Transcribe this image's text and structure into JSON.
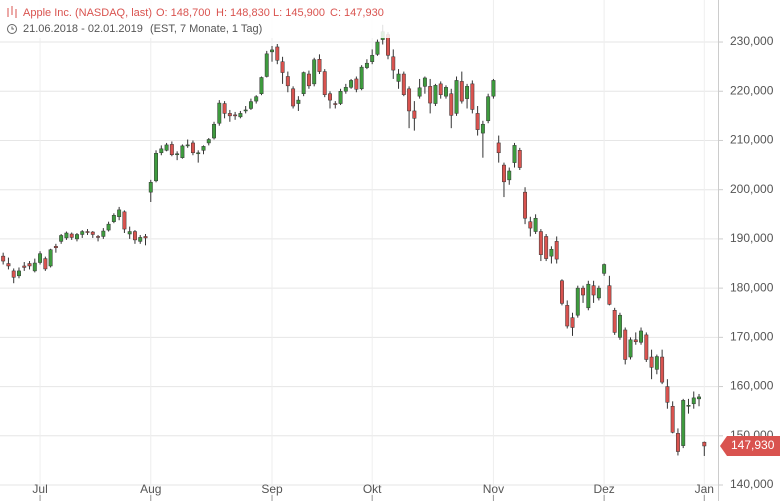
{
  "chart_data": {
    "type": "candlestick",
    "header": {
      "name": "Apple Inc. (NASDAQ, last)",
      "open": "O: 148,700",
      "high": "H: 148,830",
      "low": "L: 145,900",
      "close": "C: 147,930",
      "range": "21.06.2018 - 02.01.2019",
      "info": "(EST, 7 Monate, 1 Tag)"
    },
    "up_color": "#3e9b3e",
    "down_color": "#d9534f",
    "grid": true,
    "ylim": [
      136750,
      238540
    ],
    "xlim": [
      -0.6,
      135.6
    ],
    "yticks": [
      {
        "value": 140000,
        "label": "140,000"
      },
      {
        "value": 150000,
        "label": "150,000"
      },
      {
        "value": 160000,
        "label": "160,000"
      },
      {
        "value": 170000,
        "label": "170,000"
      },
      {
        "value": 180000,
        "label": "180,000"
      },
      {
        "value": 190000,
        "label": "190,000"
      },
      {
        "value": 200000,
        "label": "200,000"
      },
      {
        "value": 210000,
        "label": "210,000"
      },
      {
        "value": 220000,
        "label": "220,000"
      },
      {
        "value": 230000,
        "label": "230,000"
      }
    ],
    "xticks": [
      {
        "value": 7,
        "label": "Jul"
      },
      {
        "value": 28,
        "label": "Aug"
      },
      {
        "value": 51,
        "label": "Sep"
      },
      {
        "value": 70,
        "label": "Okt"
      },
      {
        "value": 93,
        "label": "Nov"
      },
      {
        "value": 114,
        "label": "Dez"
      },
      {
        "value": 133,
        "label": "Jan"
      }
    ],
    "last_label": "147,930",
    "ohlc": [
      [
        186500,
        187200,
        184800,
        185500
      ],
      [
        185000,
        186200,
        183800,
        184500
      ],
      [
        183500,
        184000,
        181000,
        182200
      ],
      [
        182500,
        184200,
        182000,
        183500
      ],
      [
        184500,
        185300,
        183500,
        184200
      ],
      [
        185000,
        185500,
        183800,
        184500
      ],
      [
        183500,
        186000,
        183200,
        185100
      ],
      [
        185200,
        187500,
        184800,
        187000
      ],
      [
        186000,
        186400,
        183500,
        183900
      ],
      [
        184500,
        188000,
        184200,
        187800
      ],
      [
        188500,
        189000,
        187200,
        188200
      ],
      [
        189500,
        191000,
        189000,
        190700
      ],
      [
        190200,
        191500,
        189800,
        191200
      ],
      [
        191000,
        191300,
        189800,
        190300
      ],
      [
        190000,
        191200,
        189500,
        190900
      ],
      [
        190900,
        191800,
        190200,
        191500
      ],
      [
        191500,
        192000,
        190800,
        191300
      ],
      [
        191400,
        191600,
        190200,
        190900
      ],
      [
        190500,
        190800,
        189500,
        190400
      ],
      [
        190500,
        192200,
        190000,
        191600
      ],
      [
        191800,
        193500,
        191500,
        193000
      ],
      [
        193500,
        195200,
        193200,
        194800
      ],
      [
        194500,
        196500,
        193800,
        195900
      ],
      [
        195500,
        195800,
        191200,
        192000
      ],
      [
        191000,
        192500,
        190000,
        191500
      ],
      [
        191500,
        191800,
        189000,
        189800
      ],
      [
        189500,
        190800,
        189000,
        190300
      ],
      [
        190500,
        191000,
        188700,
        190200
      ],
      [
        199500,
        202000,
        197500,
        201500
      ],
      [
        201800,
        208000,
        201500,
        207400
      ],
      [
        207500,
        209000,
        207000,
        208300
      ],
      [
        208000,
        209500,
        207800,
        209100
      ],
      [
        209200,
        209800,
        206800,
        207100
      ],
      [
        207200,
        207800,
        206000,
        207300
      ],
      [
        206500,
        209200,
        206300,
        208900
      ],
      [
        209000,
        210200,
        208500,
        209100
      ],
      [
        209500,
        210000,
        207000,
        207500
      ],
      [
        207500,
        208000,
        205500,
        207500
      ],
      [
        208000,
        209000,
        207200,
        208800
      ],
      [
        209500,
        210500,
        209000,
        210200
      ],
      [
        210500,
        213800,
        210200,
        213300
      ],
      [
        213500,
        218200,
        213000,
        217600
      ],
      [
        217500,
        218000,
        214500,
        215500
      ],
      [
        215500,
        216200,
        213800,
        215000
      ],
      [
        215200,
        215800,
        214200,
        215000
      ],
      [
        214800,
        216000,
        214500,
        215500
      ],
      [
        216000,
        217000,
        215500,
        216200
      ],
      [
        216500,
        218500,
        216200,
        217900
      ],
      [
        218000,
        219200,
        217500,
        218900
      ],
      [
        219500,
        223000,
        219200,
        222800
      ],
      [
        223000,
        228200,
        222800,
        227600
      ],
      [
        228000,
        229200,
        226000,
        228400
      ],
      [
        229000,
        229600,
        225500,
        226300
      ],
      [
        226000,
        227000,
        221500,
        223800
      ],
      [
        223000,
        224000,
        219800,
        221100
      ],
      [
        220500,
        221000,
        216500,
        217000
      ],
      [
        217500,
        219000,
        216000,
        218200
      ],
      [
        219500,
        224000,
        219000,
        223800
      ],
      [
        223500,
        224200,
        220500,
        221100
      ],
      [
        221500,
        226800,
        221000,
        226400
      ],
      [
        226500,
        227500,
        223500,
        224000
      ],
      [
        224000,
        224500,
        218800,
        219300
      ],
      [
        219500,
        220000,
        216500,
        218200
      ],
      [
        217500,
        218000,
        216500,
        217300
      ],
      [
        217500,
        220500,
        217200,
        220000
      ],
      [
        220000,
        221500,
        219500,
        220800
      ],
      [
        220800,
        222500,
        220500,
        222200
      ],
      [
        222500,
        223000,
        219800,
        220400
      ],
      [
        220500,
        225300,
        220200,
        224900
      ],
      [
        224800,
        226500,
        224500,
        225700
      ],
      [
        226000,
        228500,
        225500,
        227300
      ],
      [
        227500,
        230500,
        227200,
        230000
      ],
      [
        230500,
        233500,
        229500,
        232100
      ],
      [
        231500,
        232000,
        226500,
        227300
      ],
      [
        227000,
        228500,
        222500,
        224300
      ],
      [
        222000,
        224500,
        220500,
        223500
      ],
      [
        223500,
        224000,
        219000,
        219300
      ],
      [
        220500,
        221000,
        212500,
        216000
      ],
      [
        216000,
        218000,
        212000,
        214500
      ],
      [
        219000,
        222500,
        218500,
        220700
      ],
      [
        221000,
        223000,
        219500,
        222700
      ],
      [
        221000,
        222500,
        215500,
        217600
      ],
      [
        217500,
        221500,
        217000,
        221200
      ],
      [
        221500,
        222000,
        218500,
        219300
      ],
      [
        219000,
        221200,
        218500,
        220800
      ],
      [
        219500,
        220500,
        212500,
        215100
      ],
      [
        215500,
        223000,
        215000,
        222200
      ],
      [
        222000,
        224000,
        217500,
        218000
      ],
      [
        218500,
        221500,
        216500,
        221000
      ],
      [
        221500,
        222200,
        215500,
        216300
      ],
      [
        215500,
        217000,
        211000,
        212200
      ],
      [
        211500,
        214000,
        206500,
        213300
      ],
      [
        214000,
        219500,
        213500,
        218900
      ],
      [
        219000,
        222500,
        218500,
        222200
      ],
      [
        209500,
        211000,
        205500,
        207500
      ],
      [
        205000,
        205500,
        198500,
        201600
      ],
      [
        202000,
        204500,
        201000,
        203800
      ],
      [
        205500,
        209500,
        204500,
        209000
      ],
      [
        208000,
        208500,
        204000,
        204500
      ],
      [
        199500,
        200500,
        193000,
        194200
      ],
      [
        193500,
        194500,
        190500,
        192200
      ],
      [
        191500,
        195000,
        191000,
        194200
      ],
      [
        191500,
        192000,
        185500,
        186800
      ],
      [
        190500,
        191000,
        185500,
        186000
      ],
      [
        186500,
        188500,
        185000,
        187900
      ],
      [
        189500,
        190500,
        185000,
        185900
      ],
      [
        181500,
        181800,
        176500,
        176900
      ],
      [
        176500,
        177500,
        171800,
        172300
      ],
      [
        174000,
        175000,
        170300,
        172000
      ],
      [
        174500,
        180500,
        174000,
        180000
      ],
      [
        180000,
        180500,
        177000,
        178600
      ],
      [
        176000,
        181500,
        175500,
        180800
      ],
      [
        180500,
        181500,
        177000,
        178600
      ],
      [
        178000,
        180500,
        177500,
        180000
      ],
      [
        183000,
        185000,
        182500,
        184800
      ],
      [
        180500,
        182500,
        176500,
        176700
      ],
      [
        175500,
        176000,
        170500,
        171000
      ],
      [
        170000,
        175000,
        169500,
        174500
      ],
      [
        171500,
        172000,
        164500,
        165500
      ],
      [
        166000,
        170000,
        165500,
        169500
      ],
      [
        169500,
        171000,
        168500,
        169100
      ],
      [
        169000,
        172000,
        168500,
        171300
      ],
      [
        170500,
        171000,
        165000,
        165500
      ],
      [
        166000,
        167500,
        161500,
        163900
      ],
      [
        163500,
        166500,
        162500,
        166100
      ],
      [
        166000,
        167500,
        160500,
        160900
      ],
      [
        160000,
        161500,
        155500,
        156800
      ],
      [
        156000,
        157000,
        150500,
        150700
      ],
      [
        150500,
        151500,
        146000,
        146800
      ],
      [
        148000,
        157500,
        147500,
        157200
      ],
      [
        156000,
        157500,
        154500,
        156200
      ],
      [
        156500,
        159000,
        155500,
        157700
      ],
      [
        157500,
        158500,
        156000,
        157900
      ],
      [
        148700,
        148830,
        145900,
        147930
      ]
    ]
  }
}
